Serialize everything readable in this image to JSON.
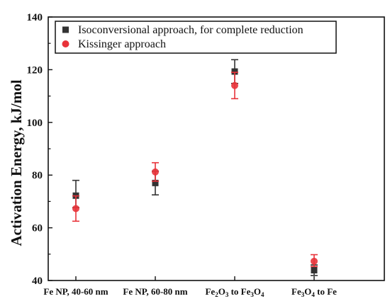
{
  "chart_data": {
    "type": "scatter",
    "title": "",
    "xlabel": "",
    "ylabel": "Activation Energy, kJ/mol",
    "ylim": [
      40,
      140
    ],
    "yticks": [
      "40",
      "60",
      "80",
      "100",
      "120",
      "140"
    ],
    "categories": [
      {
        "pre": "Fe NP, 40-60 nm",
        "segments": []
      },
      {
        "pre": "Fe NP, 60-80 nm",
        "segments": []
      },
      {
        "pre": "",
        "segments": [
          [
            "Fe",
            "2"
          ],
          [
            "O",
            "3"
          ],
          [
            " to Fe",
            "3"
          ],
          [
            "O",
            "4"
          ]
        ]
      },
      {
        "pre": "",
        "segments": [
          [
            "Fe",
            "3"
          ],
          [
            "O",
            "4"
          ],
          [
            " to Fe",
            ""
          ]
        ]
      }
    ],
    "legend": {
      "position": "top-right"
    },
    "series": [
      {
        "name": "Isoconversional approach, for complete reduction",
        "color": "#333333",
        "marker": "square",
        "values": [
          72.2,
          77.0,
          119.3,
          43.9
        ],
        "err_low": [
          4.5,
          4.5,
          4.5,
          2.0
        ],
        "err_high": [
          5.8,
          4.5,
          4.5,
          2.0
        ]
      },
      {
        "name": "Kissinger approach",
        "color": "#e8333a",
        "marker": "circle",
        "values": [
          67.3,
          81.2,
          114.0,
          47.3
        ],
        "err_low": [
          4.8,
          3.5,
          5.0,
          2.0
        ],
        "err_high": [
          4.8,
          3.5,
          5.0,
          2.5
        ]
      }
    ]
  }
}
